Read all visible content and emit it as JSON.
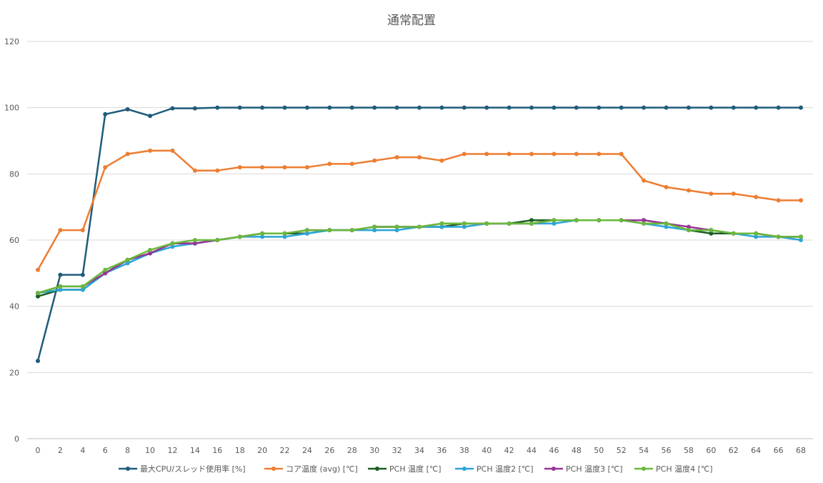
{
  "chart_data": {
    "type": "line",
    "title": "通常配置",
    "xlabel": "",
    "ylabel": "",
    "ylim": [
      0,
      120
    ],
    "yticks": [
      0,
      20,
      40,
      60,
      80,
      100,
      120
    ],
    "x": [
      0,
      2,
      4,
      6,
      8,
      10,
      12,
      14,
      16,
      18,
      20,
      22,
      24,
      26,
      28,
      30,
      32,
      34,
      36,
      38,
      40,
      42,
      44,
      46,
      48,
      50,
      52,
      54,
      56,
      58,
      60,
      62,
      64,
      66,
      68
    ],
    "grid": true,
    "legend": "bottom",
    "series": [
      {
        "name": "最大CPU/スレッド使用率 [%]",
        "color": "#1f5c7a",
        "values": [
          23.5,
          49.5,
          49.5,
          98,
          99.5,
          97.5,
          99.8,
          99.8,
          100,
          100,
          100,
          100,
          100,
          100,
          100,
          100,
          100,
          100,
          100,
          100,
          100,
          100,
          100,
          100,
          100,
          100,
          100,
          100,
          100,
          100,
          100,
          100,
          100,
          100,
          100
        ]
      },
      {
        "name": "コア温度 (avg) [℃]",
        "color": "#ed7d31",
        "values": [
          51,
          63,
          63,
          82,
          86,
          87,
          87,
          81,
          81,
          82,
          82,
          82,
          82,
          83,
          83,
          84,
          85,
          85,
          84,
          86,
          86,
          86,
          86,
          86,
          86,
          86,
          86,
          78,
          76,
          75,
          74,
          74,
          73,
          72,
          72
        ]
      },
      {
        "name": "PCH 温度 [℃]",
        "color": "#1a5e20",
        "values": [
          43,
          45,
          45,
          50,
          54,
          56,
          59,
          59,
          60,
          61,
          62,
          62,
          62,
          63,
          63,
          64,
          64,
          64,
          64,
          65,
          65,
          65,
          66,
          66,
          66,
          66,
          66,
          66,
          65,
          63,
          62,
          62,
          62,
          61,
          61
        ]
      },
      {
        "name": "PCH 温度2 [℃]",
        "color": "#2aa5d8",
        "values": [
          44,
          45,
          45,
          50,
          53,
          56,
          58,
          59,
          60,
          61,
          61,
          61,
          62,
          63,
          63,
          63,
          63,
          64,
          64,
          64,
          65,
          65,
          65,
          65,
          66,
          66,
          66,
          65,
          64,
          63,
          63,
          62,
          61,
          61,
          60
        ]
      },
      {
        "name": "PCH 温度3 [℃]",
        "color": "#993399",
        "values": [
          44,
          46,
          46,
          50,
          54,
          56,
          59,
          59,
          60,
          61,
          62,
          62,
          63,
          63,
          63,
          64,
          64,
          64,
          65,
          65,
          65,
          65,
          65,
          66,
          66,
          66,
          66,
          66,
          65,
          64,
          63,
          62,
          62,
          61,
          61
        ]
      },
      {
        "name": "PCH 温度4 [℃]",
        "color": "#6ab93a",
        "values": [
          44,
          46,
          46,
          51,
          54,
          57,
          59,
          60,
          60,
          61,
          62,
          62,
          63,
          63,
          63,
          64,
          64,
          64,
          65,
          65,
          65,
          65,
          65,
          66,
          66,
          66,
          66,
          65,
          65,
          63,
          63,
          62,
          62,
          61,
          61
        ]
      }
    ]
  }
}
